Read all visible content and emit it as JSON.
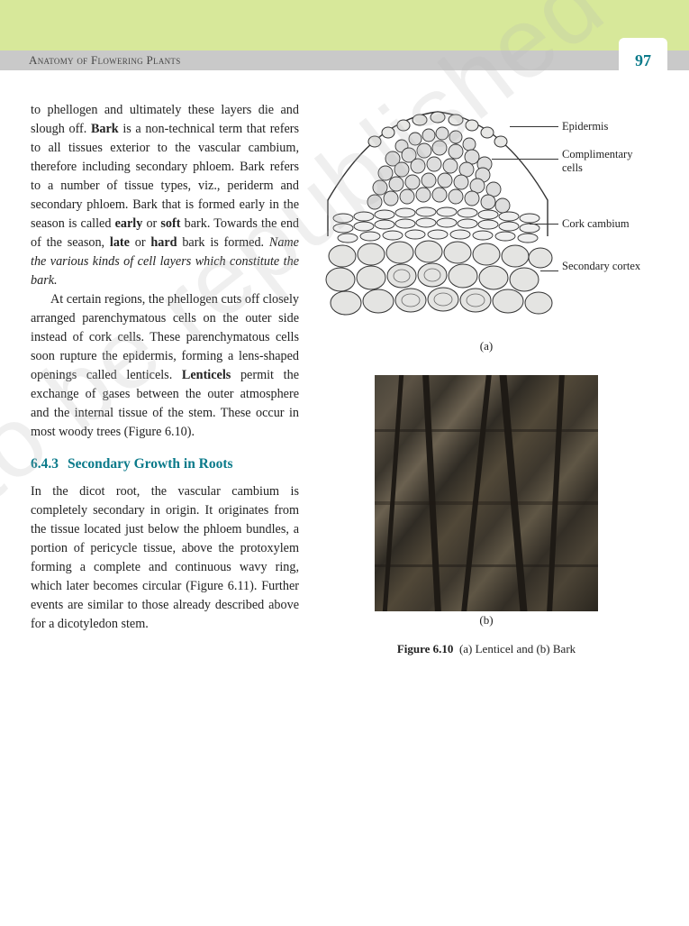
{
  "header": {
    "chapter_title": "Anatomy of Flowering Plants",
    "page_number": "97"
  },
  "body": {
    "para1_html": "to phellogen and ultimately these layers die and slough off. <b>Bark</b> is a non-technical term that refers to all tissues exterior to the vascular cambium, therefore including secondary phloem. Bark refers to a number of tissue types, viz., periderm and secondary phloem. Bark that is formed early in the season is called <b>early</b> or <b>soft</b> bark. Towards the end of the season, <b>late</b> or <b>hard</b> bark is formed. <i>Name the various kinds of cell layers which constitute the bark.</i>",
    "para2_html": "At certain regions, the phellogen cuts off closely arranged parenchymatous cells on the outer side instead of cork cells. These parenchymatous cells soon rupture the epidermis, forming a lens-shaped openings called lenticels. <b>Lenticels</b> permit the exchange of gases between the outer atmosphere and the internal tissue of the stem. These occur in most woody trees (Figure 6.10).",
    "section_number": "6.4.3",
    "section_title": "Secondary Growth in Roots",
    "para3": "In the dicot root, the vascular cambium is completely secondary in origin. It originates from the tissue located just below the phloem bundles, a portion of pericycle tissue, above the protoxylem forming a complete and continuous wavy ring, which later becomes circular (Figure 6.11). Further events are similar to those already described above for a dicotyledon stem."
  },
  "figure": {
    "labels": {
      "epidermis": "Epidermis",
      "complimentary": "Complimentary cells",
      "cork_cambium": "Cork cambium",
      "secondary_cortex": "Secondary cortex"
    },
    "subfig_a": "(a)",
    "subfig_b": "(b)",
    "caption_html": "<b>Figure 6.10</b>&nbsp;&nbsp;(a) Lenticel and (b) Bark"
  },
  "watermark": "© NCERT not to be republished",
  "colors": {
    "banner": "#d7e89a",
    "headerbar": "#c9c9c9",
    "accent": "#0a7a8a",
    "text": "#222222"
  }
}
